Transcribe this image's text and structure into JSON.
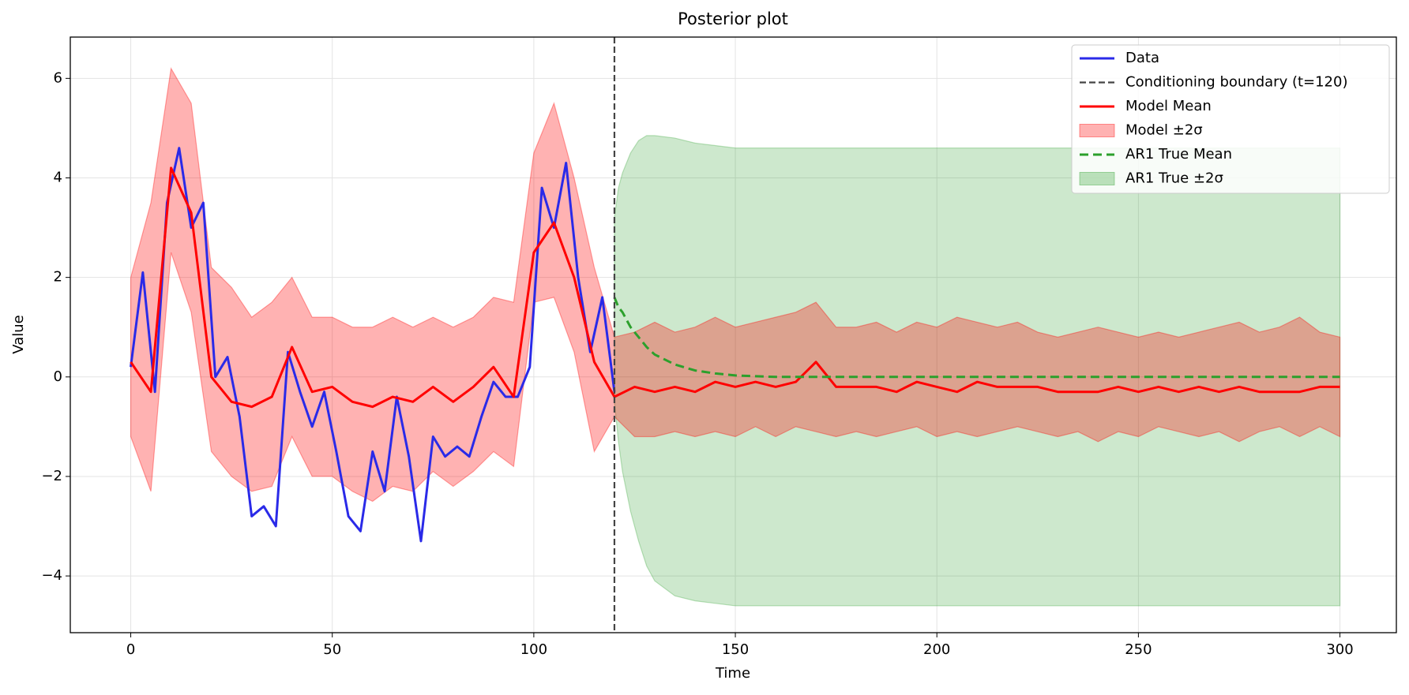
{
  "chart_data": {
    "type": "line",
    "title": "Posterior plot",
    "xlabel": "Time",
    "ylabel": "Value",
    "xlim": [
      -15,
      314
    ],
    "ylim": [
      -5.14,
      6.83
    ],
    "xticks": [
      0,
      50,
      100,
      150,
      200,
      250,
      300
    ],
    "yticks": [
      {
        "value": -4,
        "label": "−4"
      },
      {
        "value": -2,
        "label": "−2"
      },
      0,
      2,
      4,
      6
    ],
    "grid": true,
    "legend": "upper right",
    "series": [
      {
        "name": "Data",
        "color": "#2a2ae8",
        "x": [
          0,
          3,
          6,
          9,
          12,
          15,
          18,
          21,
          24,
          27,
          30,
          33,
          36,
          39,
          42,
          45,
          48,
          51,
          54,
          57,
          60,
          63,
          66,
          69,
          72,
          75,
          78,
          81,
          84,
          87,
          90,
          93,
          96,
          99,
          102,
          105,
          108,
          111,
          114,
          117,
          120
        ],
        "values": [
          0.2,
          2.1,
          -0.3,
          3.5,
          4.6,
          3.0,
          3.5,
          0.0,
          0.4,
          -0.8,
          -2.8,
          -2.6,
          -3.0,
          0.5,
          -0.3,
          -1.0,
          -0.3,
          -1.5,
          -2.8,
          -3.1,
          -1.5,
          -2.3,
          -0.4,
          -1.6,
          -3.3,
          -1.2,
          -1.6,
          -1.4,
          -1.6,
          -0.8,
          -0.1,
          -0.4,
          -0.4,
          0.2,
          3.8,
          3.0,
          4.3,
          2.0,
          0.5,
          1.6,
          -0.3
        ]
      },
      {
        "name": "Model Mean",
        "color": "#ff0000",
        "x": [
          0,
          5,
          10,
          15,
          20,
          25,
          30,
          35,
          40,
          45,
          50,
          55,
          60,
          65,
          70,
          75,
          80,
          85,
          90,
          95,
          100,
          105,
          110,
          115,
          120,
          125,
          130,
          135,
          140,
          145,
          150,
          155,
          160,
          165,
          170,
          175,
          180,
          185,
          190,
          195,
          200,
          205,
          210,
          215,
          220,
          225,
          230,
          235,
          240,
          245,
          250,
          255,
          260,
          265,
          270,
          275,
          280,
          285,
          290,
          295,
          300
        ],
        "values": [
          0.3,
          -0.3,
          4.2,
          3.3,
          0.0,
          -0.5,
          -0.6,
          -0.4,
          0.6,
          -0.3,
          -0.2,
          -0.5,
          -0.6,
          -0.4,
          -0.5,
          -0.2,
          -0.5,
          -0.2,
          0.2,
          -0.4,
          2.5,
          3.1,
          2.0,
          0.3,
          -0.4,
          -0.2,
          -0.3,
          -0.2,
          -0.3,
          -0.1,
          -0.2,
          -0.1,
          -0.2,
          -0.1,
          0.3,
          -0.2,
          -0.2,
          -0.2,
          -0.3,
          -0.1,
          -0.2,
          -0.3,
          -0.1,
          -0.2,
          -0.2,
          -0.2,
          -0.3,
          -0.3,
          -0.3,
          -0.2,
          -0.3,
          -0.2,
          -0.3,
          -0.2,
          -0.3,
          -0.2,
          -0.3,
          -0.3,
          -0.3,
          -0.2,
          -0.2
        ]
      },
      {
        "name": "AR1 True Mean",
        "color": "#2ca02c",
        "dashed": true,
        "x": [
          120,
          121,
          122,
          124,
          126,
          128,
          130,
          135,
          140,
          145,
          150,
          160,
          170,
          180,
          190,
          200,
          210,
          220,
          230,
          240,
          250,
          260,
          270,
          280,
          290,
          300
        ],
        "values": [
          1.6,
          1.4,
          1.3,
          1.0,
          0.8,
          0.6,
          0.45,
          0.25,
          0.13,
          0.07,
          0.03,
          0,
          0,
          0,
          0,
          0,
          0,
          0,
          0,
          0,
          0,
          0,
          0,
          0,
          0,
          0
        ]
      }
    ],
    "bands": [
      {
        "name": "Model ±2σ",
        "color": "#ff0000",
        "x": [
          0,
          5,
          10,
          15,
          20,
          25,
          30,
          35,
          40,
          45,
          50,
          55,
          60,
          65,
          70,
          75,
          80,
          85,
          90,
          95,
          100,
          105,
          110,
          115,
          120,
          125,
          130,
          135,
          140,
          145,
          150,
          155,
          160,
          165,
          170,
          175,
          180,
          185,
          190,
          195,
          200,
          205,
          210,
          215,
          220,
          225,
          230,
          235,
          240,
          245,
          250,
          255,
          260,
          265,
          270,
          275,
          280,
          285,
          290,
          295,
          300
        ],
        "upper": [
          2.0,
          3.5,
          6.2,
          5.5,
          2.2,
          1.8,
          1.2,
          1.5,
          2.0,
          1.2,
          1.2,
          1.0,
          1.0,
          1.2,
          1.0,
          1.2,
          1.0,
          1.2,
          1.6,
          1.5,
          4.5,
          5.5,
          4.0,
          2.2,
          0.8,
          0.9,
          1.1,
          0.9,
          1.0,
          1.2,
          1.0,
          1.1,
          1.2,
          1.3,
          1.5,
          1.0,
          1.0,
          1.1,
          0.9,
          1.1,
          1.0,
          1.2,
          1.1,
          1.0,
          1.1,
          0.9,
          0.8,
          0.9,
          1.0,
          0.9,
          0.8,
          0.9,
          0.8,
          0.9,
          1.0,
          1.1,
          0.9,
          1.0,
          1.2,
          0.9,
          0.8
        ],
        "lower": [
          -1.2,
          -2.3,
          2.5,
          1.3,
          -1.5,
          -2.0,
          -2.3,
          -2.2,
          -1.2,
          -2.0,
          -2.0,
          -2.3,
          -2.5,
          -2.2,
          -2.3,
          -1.9,
          -2.2,
          -1.9,
          -1.5,
          -1.8,
          1.5,
          1.6,
          0.5,
          -1.5,
          -0.8,
          -1.2,
          -1.2,
          -1.1,
          -1.2,
          -1.1,
          -1.2,
          -1.0,
          -1.2,
          -1.0,
          -1.1,
          -1.2,
          -1.1,
          -1.2,
          -1.1,
          -1.0,
          -1.2,
          -1.1,
          -1.2,
          -1.1,
          -1.0,
          -1.1,
          -1.2,
          -1.1,
          -1.3,
          -1.1,
          -1.2,
          -1.0,
          -1.1,
          -1.2,
          -1.1,
          -1.3,
          -1.1,
          -1.0,
          -1.2,
          -1.0,
          -1.2
        ]
      },
      {
        "name": "AR1 True ±2σ",
        "color": "#2ca02c",
        "x": [
          120,
          121,
          122,
          124,
          126,
          128,
          130,
          135,
          140,
          145,
          150,
          160,
          170,
          180,
          190,
          200,
          210,
          220,
          230,
          240,
          250,
          260,
          270,
          280,
          290,
          300
        ],
        "upper": [
          3.2,
          3.8,
          4.1,
          4.5,
          4.75,
          4.85,
          4.85,
          4.8,
          4.7,
          4.65,
          4.6,
          4.6,
          4.6,
          4.6,
          4.6,
          4.6,
          4.6,
          4.6,
          4.6,
          4.6,
          4.6,
          4.6,
          4.6,
          4.6,
          4.6,
          4.6
        ],
        "lower": [
          -0.5,
          -1.3,
          -1.9,
          -2.7,
          -3.3,
          -3.8,
          -4.1,
          -4.4,
          -4.5,
          -4.55,
          -4.6,
          -4.6,
          -4.6,
          -4.6,
          -4.6,
          -4.6,
          -4.6,
          -4.6,
          -4.6,
          -4.6,
          -4.6,
          -4.6,
          -4.6,
          -4.6,
          -4.6,
          -4.6
        ]
      }
    ],
    "boundary": {
      "name": "Conditioning boundary (t=120)",
      "x": 120,
      "color": "#444444"
    }
  }
}
